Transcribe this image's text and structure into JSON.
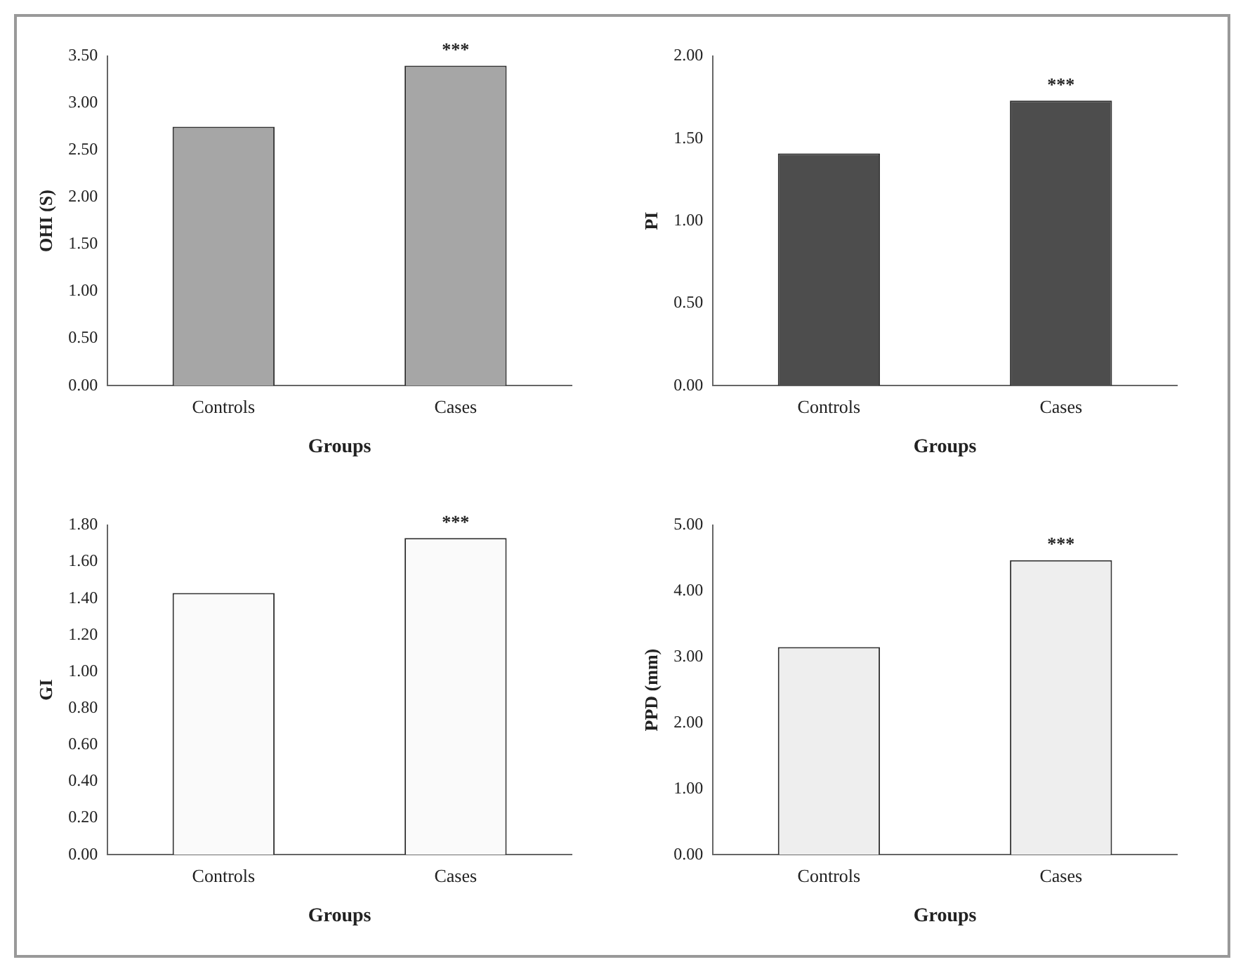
{
  "chart_data": [
    {
      "type": "bar",
      "xlabel": "Groups",
      "ylabel": "OHI (S)",
      "categories": [
        "Controls",
        "Cases"
      ],
      "values": [
        2.75,
        3.4
      ],
      "color": "#a6a6a6",
      "ylim": [
        0,
        3.5
      ],
      "yticks": [
        {
          "value": 0,
          "label": "0.00"
        },
        {
          "value": 0.5,
          "label": "0.50"
        },
        {
          "value": 1,
          "label": "1.00"
        },
        {
          "value": 1.5,
          "label": "1.50"
        },
        {
          "value": 2,
          "label": "2.00"
        },
        {
          "value": 2.5,
          "label": "2.50"
        },
        {
          "value": 3,
          "label": "3.00"
        },
        {
          "value": 3.5,
          "label": "3.50"
        }
      ],
      "annotations": [
        {
          "text": "***",
          "x": "Cases",
          "y": 3.4
        }
      ]
    },
    {
      "type": "bar",
      "xlabel": "Groups",
      "ylabel": "PI",
      "categories": [
        "Controls",
        "Cases"
      ],
      "values": [
        1.41,
        1.73
      ],
      "color": "#4d4d4d",
      "ylim": [
        0,
        2
      ],
      "yticks": [
        {
          "value": 0,
          "label": "0.00"
        },
        {
          "value": 0.5,
          "label": "0.50"
        },
        {
          "value": 1,
          "label": "1.00"
        },
        {
          "value": 1.5,
          "label": "1.50"
        },
        {
          "value": 2,
          "label": "2.00"
        }
      ],
      "annotations": [
        {
          "text": "***",
          "x": "Cases",
          "y": 1.73
        }
      ]
    },
    {
      "type": "bar",
      "xlabel": "Groups",
      "ylabel": "GI",
      "categories": [
        "Controls",
        "Cases"
      ],
      "values": [
        1.43,
        1.73
      ],
      "color": "#fafafa",
      "ylim": [
        0,
        1.8
      ],
      "yticks": [
        {
          "value": 0,
          "label": "0.00"
        },
        {
          "value": 0.2,
          "label": "0.20"
        },
        {
          "value": 0.4,
          "label": "0.40"
        },
        {
          "value": 0.6,
          "label": "0.60"
        },
        {
          "value": 0.8,
          "label": "0.80"
        },
        {
          "value": 1,
          "label": "1.00"
        },
        {
          "value": 1.2,
          "label": "1.20"
        },
        {
          "value": 1.4,
          "label": "1.40"
        },
        {
          "value": 1.6,
          "label": "1.60"
        },
        {
          "value": 1.8,
          "label": "1.80"
        }
      ],
      "annotations": [
        {
          "text": "***",
          "x": "Cases",
          "y": 1.73
        }
      ]
    },
    {
      "type": "bar",
      "xlabel": "Groups",
      "ylabel": "PPD (mm)",
      "categories": [
        "Controls",
        "Cases"
      ],
      "values": [
        3.15,
        4.47
      ],
      "color": "#eeeeee",
      "ylim": [
        0,
        5
      ],
      "yticks": [
        {
          "value": 0,
          "label": "0.00"
        },
        {
          "value": 1,
          "label": "1.00"
        },
        {
          "value": 2,
          "label": "2.00"
        },
        {
          "value": 3,
          "label": "3.00"
        },
        {
          "value": 4,
          "label": "4.00"
        },
        {
          "value": 5,
          "label": "5.00"
        }
      ],
      "annotations": [
        {
          "text": "***",
          "x": "Cases",
          "y": 4.47
        }
      ]
    }
  ]
}
